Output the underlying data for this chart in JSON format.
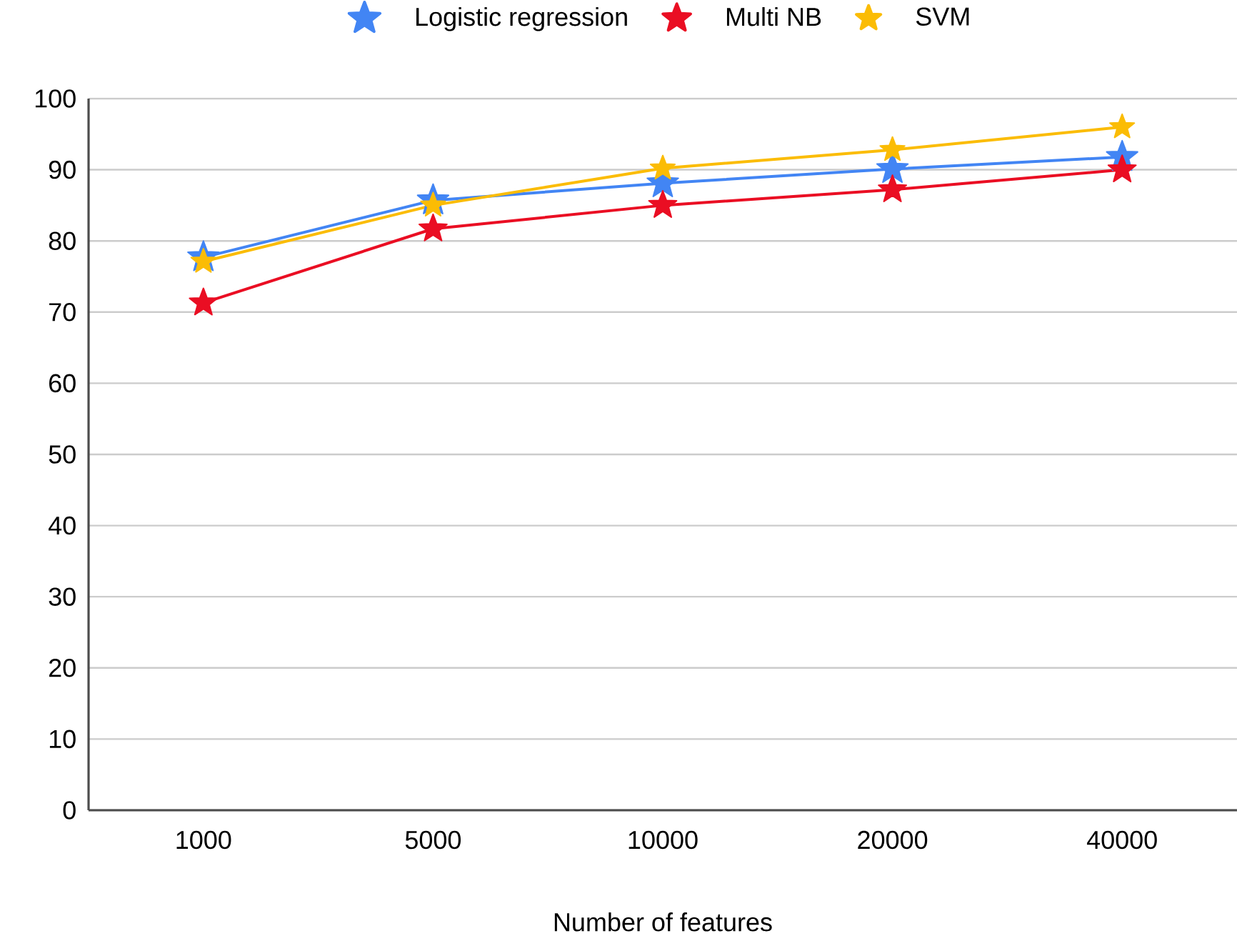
{
  "chart_data": {
    "type": "line",
    "xlabel": "Number of features",
    "categories": [
      "1000",
      "5000",
      "10000",
      "20000",
      "40000"
    ],
    "series": [
      {
        "name": "Logistic regression",
        "color": "#4285f4",
        "values": [
          77.7,
          85.7,
          88.1,
          90.1,
          91.8
        ]
      },
      {
        "name": "Multi NB",
        "color": "#ea0e23",
        "values": [
          71.3,
          81.7,
          85,
          87.2,
          90
        ]
      },
      {
        "name": "SVM",
        "color": "#fbbc04",
        "values": [
          77.1,
          85,
          90.2,
          92.8,
          96
        ]
      }
    ],
    "ylim": [
      0,
      100
    ],
    "yticks": [
      0,
      10,
      20,
      30,
      40,
      50,
      60,
      70,
      80,
      90,
      100
    ],
    "grid": "y",
    "legend": "top",
    "marker": "star",
    "line_style": "solid"
  }
}
